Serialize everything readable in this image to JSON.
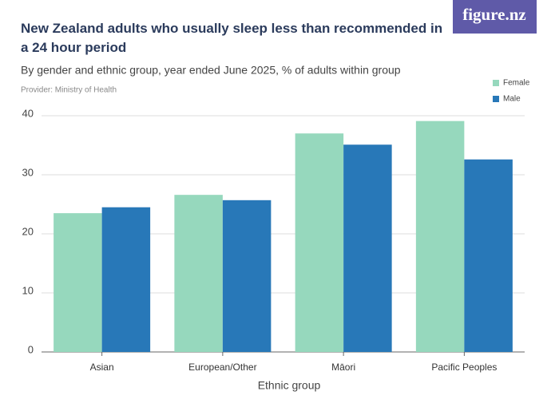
{
  "logo": "figure.nz",
  "chart_data": {
    "type": "bar",
    "title": "New Zealand adults who usually sleep less than recommended in a 24 hour period",
    "subtitle": "By gender and ethnic group, year ended June 2025, % of adults within group",
    "provider": "Provider: Ministry of Health",
    "x_label": "Ethnic group",
    "categories": [
      "Asian",
      "European/Other",
      "Māori",
      "Pacific Peoples"
    ],
    "series": [
      {
        "name": "Female",
        "color": "#96d8bd",
        "values": [
          23.5,
          26.6,
          37.0,
          39.1
        ]
      },
      {
        "name": "Male",
        "color": "#2878b8",
        "values": [
          24.5,
          25.7,
          35.1,
          32.6
        ]
      }
    ],
    "ylim": [
      0,
      40
    ],
    "yticks": [
      0,
      10,
      20,
      30,
      40
    ],
    "grid": true,
    "legend": "top-right"
  }
}
